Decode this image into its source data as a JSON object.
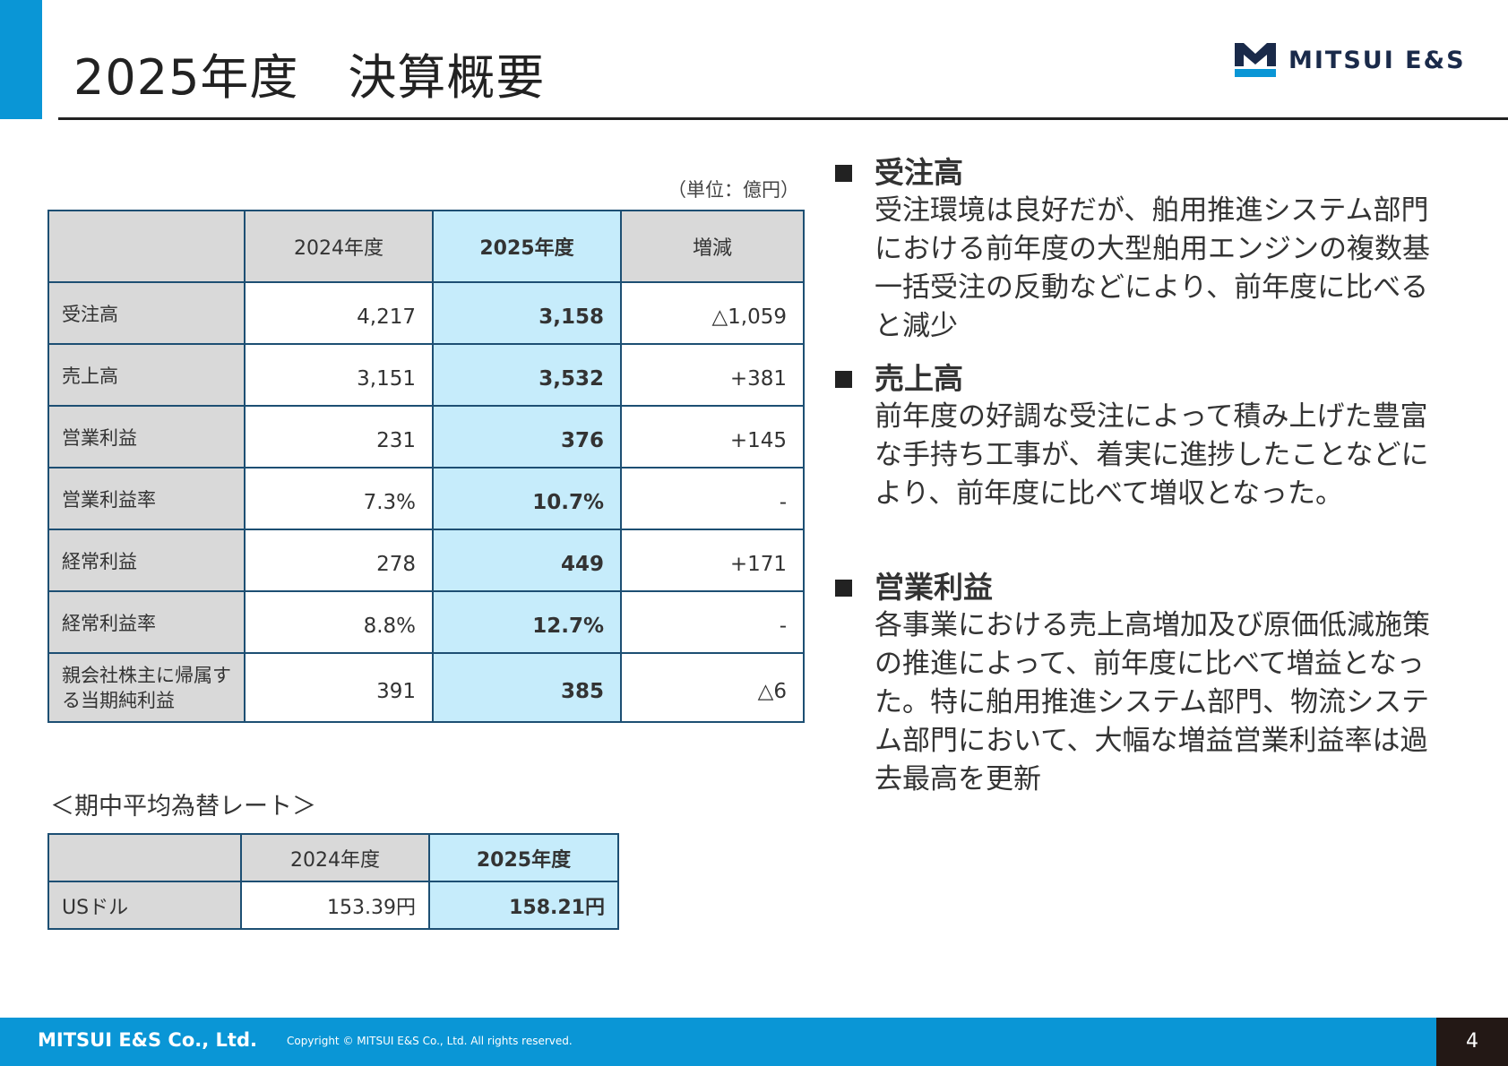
{
  "header": {
    "title": "2025年度　決算概要",
    "logo_text": "MITSUI E&S",
    "logo_colors": {
      "mark": "#1a2a4a",
      "bar": "#0a96d6"
    }
  },
  "results_table": {
    "unit": "（単位：億円）",
    "columns": [
      "",
      "2024年度",
      "2025年度",
      "増減"
    ],
    "rows": [
      {
        "label": "受注高",
        "fy2024": "4,217",
        "fy2025": "3,158",
        "change": "△1,059"
      },
      {
        "label": "売上高",
        "fy2024": "3,151",
        "fy2025": "3,532",
        "change": "+381"
      },
      {
        "label": "営業利益",
        "fy2024": "231",
        "fy2025": "376",
        "change": "+145"
      },
      {
        "label": "営業利益率",
        "fy2024": "7.3%",
        "fy2025": "10.7%",
        "change": "-"
      },
      {
        "label": "経常利益",
        "fy2024": "278",
        "fy2025": "449",
        "change": "+171"
      },
      {
        "label": "経常利益率",
        "fy2024": "8.8%",
        "fy2025": "12.7%",
        "change": "-"
      },
      {
        "label": "親会社株主に帰属する当期純利益",
        "fy2024": "391",
        "fy2025": "385",
        "change": "△6"
      }
    ]
  },
  "fx": {
    "caption": "＜期中平均為替レート＞",
    "columns": [
      "",
      "2024年度",
      "2025年度"
    ],
    "row": {
      "label": "USドル",
      "fy2024": "153.39円",
      "fy2025": "158.21円"
    }
  },
  "bullets": [
    {
      "heading": "受注高",
      "text": "受注環境は良好だが、舶用推進システム部門における前年度の大型舶用エンジンの複数基一括受注の反動などにより、前年度に比べると減少"
    },
    {
      "heading": "売上高",
      "text": "前年度の好調な受注によって積み上げた豊富な手持ち工事が、着実に進捗したことなどにより、前年度に比べて増収となった。"
    },
    {
      "heading": "営業利益",
      "text": "各事業における売上高増加及び原価低減施策の推進によって、前年度に比べて増益となった。特に舶用推進システム部門、物流システム部門において、大幅な増益営業利益率は過去最高を更新"
    }
  ],
  "footer": {
    "company": "MITSUI E&S Co., Ltd.",
    "copyright": "Copyright © MITSUI E&S Co., Ltd. All rights reserved.",
    "page_number": "4"
  },
  "colors": {
    "accent": "#0a96d6",
    "table_border": "#1d4f73",
    "header_gray": "#d9d9d9",
    "highlight": "#c6ecfb"
  }
}
